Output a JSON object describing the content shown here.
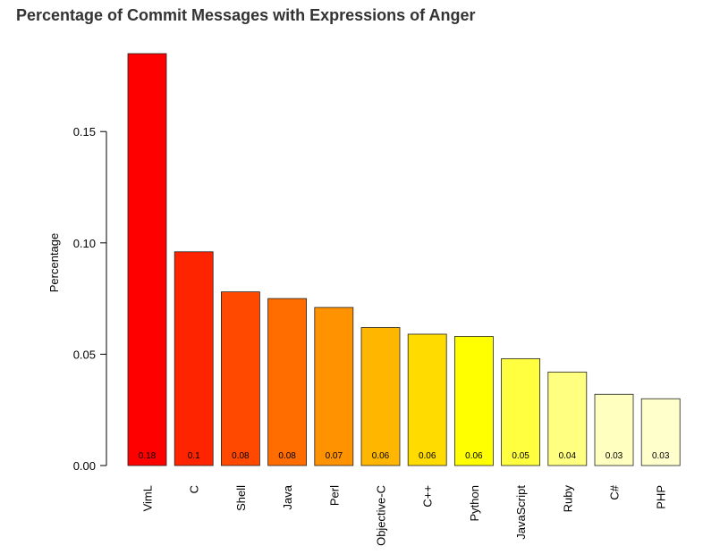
{
  "chart_data": {
    "type": "bar",
    "title": "Percentage of Commit Messages with Expressions of Anger",
    "ylabel": "Percentage",
    "xlabel": "",
    "ylim": [
      0,
      0.185
    ],
    "yticks": [
      "0.00",
      "0.05",
      "0.10",
      "0.15"
    ],
    "grid": false,
    "categories": [
      "VimL",
      "C",
      "Shell",
      "Java",
      "Perl",
      "Objective-C",
      "C++",
      "Python",
      "JavaScript",
      "Ruby",
      "C#",
      "PHP"
    ],
    "values": [
      0.185,
      0.096,
      0.078,
      0.075,
      0.071,
      0.062,
      0.059,
      0.058,
      0.048,
      0.042,
      0.032,
      0.03
    ],
    "data_labels": [
      "0.18",
      "0.1",
      "0.08",
      "0.08",
      "0.07",
      "0.06",
      "0.06",
      "0.06",
      "0.05",
      "0.04",
      "0.03",
      "0.03"
    ],
    "colors": [
      "#FF0000",
      "#FF2400",
      "#FF4900",
      "#FF6D00",
      "#FF9200",
      "#FFB600",
      "#FFDB00",
      "#FFFF00",
      "#FFFF40",
      "#FFFF80",
      "#FFFFBF",
      "#FFFFCC"
    ]
  }
}
